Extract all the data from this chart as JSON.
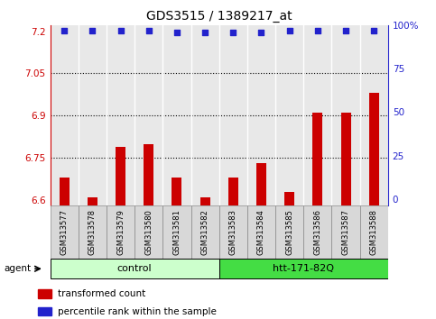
{
  "title": "GDS3515 / 1389217_at",
  "samples": [
    "GSM313577",
    "GSM313578",
    "GSM313579",
    "GSM313580",
    "GSM313581",
    "GSM313582",
    "GSM313583",
    "GSM313584",
    "GSM313585",
    "GSM313586",
    "GSM313587",
    "GSM313588"
  ],
  "bar_values": [
    6.68,
    6.61,
    6.79,
    6.8,
    6.68,
    6.61,
    6.68,
    6.73,
    6.63,
    6.91,
    6.91,
    6.98
  ],
  "percentile_values": [
    97,
    97,
    97,
    97,
    96,
    96,
    96,
    96,
    97,
    97,
    97,
    97
  ],
  "bar_color": "#cc0000",
  "dot_color": "#2222cc",
  "ylim_left": [
    6.58,
    7.22
  ],
  "ylim_right": [
    -4,
    100
  ],
  "yticks_left": [
    6.6,
    6.75,
    6.9,
    7.05,
    7.2
  ],
  "yticks_right": [
    0,
    25,
    50,
    75,
    100
  ],
  "ytick_labels_left": [
    "6.6",
    "6.75",
    "6.9",
    "7.05",
    "7.2"
  ],
  "ytick_labels_right": [
    "0",
    "25",
    "50",
    "75",
    "100%"
  ],
  "hgrid_values": [
    6.75,
    6.9,
    7.05
  ],
  "groups": [
    {
      "label": "control",
      "start": 0,
      "end": 6,
      "color": "#ccffcc"
    },
    {
      "label": "htt-171-82Q",
      "start": 6,
      "end": 12,
      "color": "#44dd44"
    }
  ],
  "agent_label": "agent",
  "legend_items": [
    {
      "color": "#cc0000",
      "label": "transformed count"
    },
    {
      "color": "#2222cc",
      "label": "percentile rank within the sample"
    }
  ],
  "plot_bg_color": "#e8e8e8",
  "bar_width": 0.35,
  "cell_separator_color": "#ffffff",
  "border_color": "#888888"
}
